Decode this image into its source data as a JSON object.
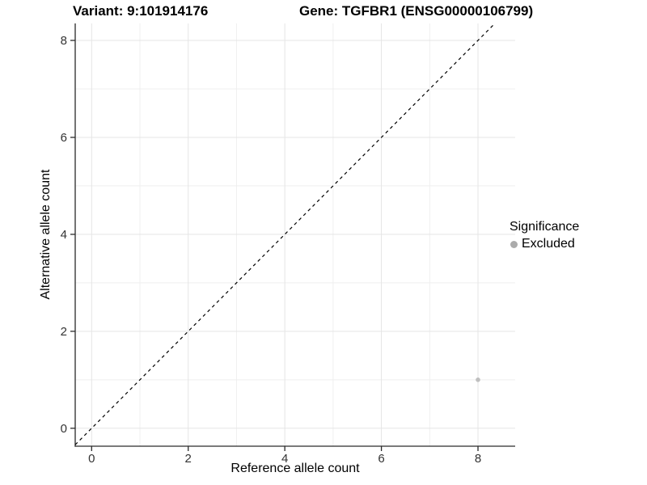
{
  "chart_data": {
    "type": "scatter",
    "title_variant": "Variant: 9:101914176",
    "title_gene": "Gene: TGFBR1 (ENSG00000106799)",
    "xlabel": "Reference allele count",
    "ylabel": "Alternative allele count",
    "xlim": [
      -0.34,
      8.77
    ],
    "ylim": [
      -0.37,
      8.35
    ],
    "x_ticks": [
      0,
      2,
      4,
      6,
      8
    ],
    "y_ticks": [
      0,
      2,
      4,
      6,
      8
    ],
    "x_minor_ticks": [
      1,
      3,
      5,
      7
    ],
    "y_minor_ticks": [
      1,
      3,
      5,
      7
    ],
    "grid": "major+minor",
    "legend": {
      "title": "Significance",
      "position": "right",
      "entries": [
        {
          "label": "Excluded",
          "key_color": "#ababab"
        }
      ]
    },
    "series": [
      {
        "name": "Excluded",
        "color": "#bfbfbf",
        "points": [
          {
            "x": 8,
            "y": 1
          }
        ]
      }
    ],
    "reference_line": {
      "slope": 1,
      "intercept": 0,
      "style": "dashed",
      "color": "#000000"
    },
    "colors": {
      "grid_major": "#e5e5e5",
      "grid_minor": "#efefef",
      "axis_line": "#2a2a2a",
      "tick_mark": "#2a2a2a",
      "tick_label": "#333333"
    }
  }
}
